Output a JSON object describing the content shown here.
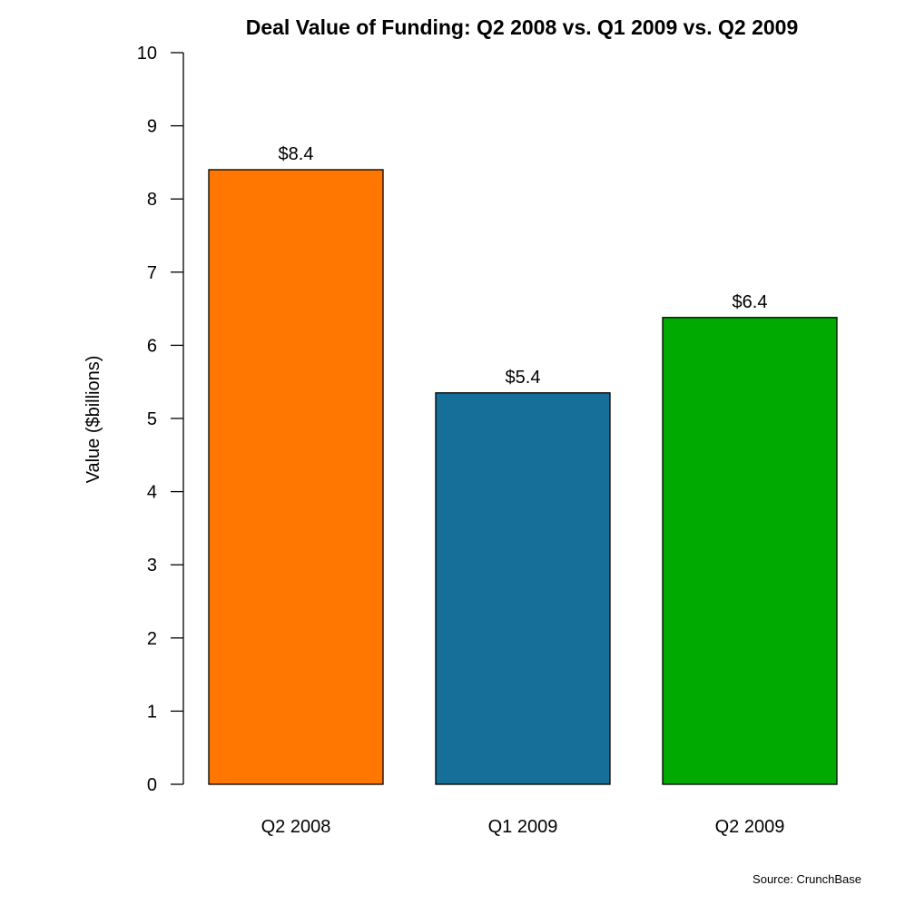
{
  "chart_data": {
    "type": "bar",
    "title": "Deal Value of Funding: Q2 2008 vs. Q1 2009 vs. Q2 2009",
    "xlabel": "",
    "ylabel": "Value ($billions)",
    "ylim": [
      0,
      10
    ],
    "yticks": [
      0,
      1,
      2,
      3,
      4,
      5,
      6,
      7,
      8,
      9,
      10
    ],
    "categories": [
      "Q2 2008",
      "Q1 2009",
      "Q2 2009"
    ],
    "values": [
      8.4,
      5.35,
      6.38
    ],
    "bar_labels": [
      "$8.4",
      "$5.4",
      "$6.4"
    ],
    "colors": [
      "#ff7700",
      "#166f98",
      "#00aa00"
    ],
    "grid": false,
    "legend": null,
    "source": "Source: CrunchBase"
  }
}
